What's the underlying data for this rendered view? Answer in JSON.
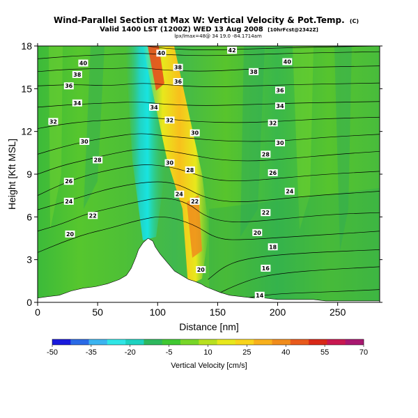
{
  "chart_data": {
    "type": "heatmap",
    "title": "Wind-Parallel Section at Max W: Vertical Velocity & Pot.Temp.",
    "title_mark": "(C)",
    "subtitle": "Valid 1400 LST (1200Z) WED 13 Aug 2008",
    "subtitle_suffix": "[10hrFcst@2342Z]",
    "info_line": "lpx/lmax=48@ 34 19.0 -84.1714am",
    "xlabel": "Distance [nm]",
    "ylabel": "Height [Kft MSL]",
    "xlim": [
      0,
      285
    ],
    "ylim": [
      0,
      18
    ],
    "x_ticks": [
      0,
      50,
      100,
      150,
      200,
      250
    ],
    "y_ticks": [
      0,
      3,
      6,
      9,
      12,
      15,
      18
    ],
    "colorbar": {
      "label": "Vertical Velocity [cm/s]",
      "ticks": [
        -50,
        -35,
        -20,
        -5,
        10,
        25,
        40,
        55,
        70
      ],
      "colors": [
        "#1a1adc",
        "#2a6ae6",
        "#3cb4f0",
        "#30e6e6",
        "#1ed2c0",
        "#2eb85e",
        "#40c832",
        "#78d628",
        "#b8e020",
        "#e8e81c",
        "#f8d41c",
        "#f8b01c",
        "#f08c1c",
        "#e85a1c",
        "#d82818",
        "#c81850",
        "#a81870"
      ]
    },
    "terrain": [
      [
        0,
        0.3
      ],
      [
        8,
        0.4
      ],
      [
        18,
        0.5
      ],
      [
        28,
        0.8
      ],
      [
        38,
        1
      ],
      [
        48,
        1.1
      ],
      [
        58,
        1.3
      ],
      [
        68,
        1.6
      ],
      [
        74,
        1.9
      ],
      [
        78,
        2.4
      ],
      [
        80,
        2.8
      ],
      [
        82,
        3.2
      ],
      [
        84,
        3.7
      ],
      [
        88,
        4.2
      ],
      [
        92,
        4.5
      ],
      [
        96,
        4.3
      ],
      [
        98,
        3.9
      ],
      [
        102,
        3.4
      ],
      [
        106,
        3.0
      ],
      [
        110,
        2.6
      ],
      [
        114,
        2.2
      ],
      [
        118,
        2
      ],
      [
        122,
        1.8
      ],
      [
        126,
        1.6
      ],
      [
        130,
        1.5
      ],
      [
        136,
        1.3
      ],
      [
        140,
        1.1
      ],
      [
        146,
        0.9
      ],
      [
        152,
        0.7
      ],
      [
        160,
        0.5
      ],
      [
        170,
        0.4
      ],
      [
        180,
        0.3
      ],
      [
        190,
        0.3
      ],
      [
        200,
        0.2
      ],
      [
        210,
        0.2
      ],
      [
        220,
        0.2
      ],
      [
        230,
        0.2
      ],
      [
        240,
        0.1
      ],
      [
        250,
        0.1
      ],
      [
        260,
        0.1
      ],
      [
        270,
        0.1
      ],
      [
        285,
        0.1
      ]
    ],
    "theta_contours": [
      {
        "value": 14,
        "points": [
          [
            168,
            0.2
          ],
          [
            180,
            0.4
          ],
          [
            200,
            0.6
          ],
          [
            230,
            0.7
          ],
          [
            260,
            0.8
          ],
          [
            285,
            0.9
          ]
        ]
      },
      {
        "value": 16,
        "points": [
          [
            150,
            0.6
          ],
          [
            165,
            1.2
          ],
          [
            185,
            1.8
          ],
          [
            210,
            2.1
          ],
          [
            240,
            2.3
          ],
          [
            285,
            2.5
          ]
        ]
      },
      {
        "value": 18,
        "points": [
          [
            142,
            1.6
          ],
          [
            155,
            2.5
          ],
          [
            170,
            3
          ],
          [
            195,
            3.3
          ],
          [
            230,
            3.5
          ],
          [
            285,
            3.7
          ]
        ]
      },
      {
        "value": 20,
        "points": [
          [
            0,
            3.5
          ],
          [
            20,
            4.2
          ],
          [
            40,
            4.8
          ],
          [
            60,
            5.2
          ],
          [
            85,
            5.8
          ],
          [
            105,
            6.1
          ],
          [
            130,
            5.5
          ],
          [
            150,
            4.4
          ],
          [
            175,
            4.4
          ],
          [
            210,
            4.6
          ],
          [
            250,
            4.8
          ],
          [
            285,
            5
          ]
        ]
      },
      {
        "value": 22,
        "points": [
          [
            0,
            5
          ],
          [
            20,
            5.5
          ],
          [
            40,
            6.2
          ],
          [
            60,
            6.6
          ],
          [
            85,
            7.1
          ],
          [
            105,
            7.4
          ],
          [
            125,
            7
          ],
          [
            140,
            6
          ],
          [
            160,
            5.6
          ],
          [
            185,
            5.7
          ],
          [
            220,
            6
          ],
          [
            250,
            6.2
          ],
          [
            285,
            6.3
          ]
        ]
      },
      {
        "value": 24,
        "points": [
          [
            0,
            6.5
          ],
          [
            20,
            7
          ],
          [
            40,
            7.5
          ],
          [
            60,
            8
          ],
          [
            85,
            8.4
          ],
          [
            105,
            8.5
          ],
          [
            120,
            8.2
          ],
          [
            140,
            7.3
          ],
          [
            165,
            7
          ],
          [
            195,
            7.2
          ],
          [
            230,
            7.5
          ],
          [
            285,
            7.8
          ]
        ]
      },
      {
        "value": 26,
        "points": [
          [
            0,
            7.5
          ],
          [
            20,
            8.3
          ],
          [
            40,
            8.9
          ],
          [
            60,
            9.3
          ],
          [
            85,
            9.7
          ],
          [
            105,
            9.6
          ],
          [
            125,
            9.2
          ],
          [
            145,
            8.6
          ],
          [
            170,
            8.5
          ],
          [
            200,
            8.7
          ],
          [
            240,
            9
          ],
          [
            285,
            9.2
          ]
        ]
      },
      {
        "value": 28,
        "points": [
          [
            0,
            9
          ],
          [
            20,
            9.6
          ],
          [
            40,
            10
          ],
          [
            60,
            10.4
          ],
          [
            85,
            10.8
          ],
          [
            105,
            10.7
          ],
          [
            125,
            10.4
          ],
          [
            150,
            10
          ],
          [
            180,
            9.9
          ],
          [
            210,
            10.1
          ],
          [
            250,
            10.4
          ],
          [
            285,
            10.6
          ]
        ]
      },
      {
        "value": 30,
        "points": [
          [
            0,
            10.4
          ],
          [
            20,
            10.9
          ],
          [
            40,
            11.3
          ],
          [
            60,
            11.6
          ],
          [
            85,
            11.9
          ],
          [
            105,
            11.7
          ],
          [
            130,
            11.5
          ],
          [
            160,
            11.3
          ],
          [
            200,
            11.3
          ],
          [
            240,
            11.6
          ],
          [
            285,
            11.8
          ]
        ]
      },
      {
        "value": 32,
        "points": [
          [
            0,
            12.2
          ],
          [
            20,
            12.5
          ],
          [
            40,
            12.7
          ],
          [
            60,
            12.8
          ],
          [
            85,
            13
          ],
          [
            105,
            12.9
          ],
          [
            130,
            12.7
          ],
          [
            165,
            12.6
          ],
          [
            200,
            12.7
          ],
          [
            240,
            12.9
          ],
          [
            285,
            13
          ]
        ]
      },
      {
        "value": 34,
        "points": [
          [
            0,
            13.7
          ],
          [
            30,
            13.9
          ],
          [
            60,
            14
          ],
          [
            85,
            14.1
          ],
          [
            105,
            13.9
          ],
          [
            140,
            13.8
          ],
          [
            180,
            13.9
          ],
          [
            220,
            14
          ],
          [
            285,
            14.1
          ]
        ]
      },
      {
        "value": 36,
        "points": [
          [
            0,
            15.2
          ],
          [
            30,
            15.3
          ],
          [
            60,
            15.2
          ],
          [
            85,
            15.4
          ],
          [
            105,
            15.3
          ],
          [
            140,
            15.1
          ],
          [
            180,
            15.2
          ],
          [
            220,
            15.3
          ],
          [
            285,
            15.4
          ]
        ]
      },
      {
        "value": 38,
        "points": [
          [
            0,
            16.2
          ],
          [
            30,
            16.4
          ],
          [
            60,
            16.4
          ],
          [
            85,
            16.5
          ],
          [
            105,
            16.3
          ],
          [
            140,
            16.2
          ],
          [
            180,
            16.4
          ],
          [
            220,
            16.5
          ],
          [
            285,
            16.6
          ]
        ]
      },
      {
        "value": 40,
        "points": [
          [
            0,
            17.1
          ],
          [
            30,
            17.3
          ],
          [
            60,
            17.4
          ],
          [
            85,
            17.5
          ],
          [
            105,
            17.4
          ],
          [
            140,
            17.3
          ],
          [
            180,
            17.4
          ],
          [
            220,
            17.5
          ],
          [
            285,
            17.6
          ]
        ]
      },
      {
        "value": 42,
        "points": [
          [
            90,
            18
          ],
          [
            110,
            17.8
          ],
          [
            140,
            17.7
          ],
          [
            180,
            17.8
          ],
          [
            220,
            17.9
          ],
          [
            285,
            18
          ]
        ]
      }
    ],
    "contour_labels": [
      {
        "text": "40",
        "x": 38,
        "y": 16.8
      },
      {
        "text": "38",
        "x": 33,
        "y": 16.0
      },
      {
        "text": "36",
        "x": 26,
        "y": 15.2
      },
      {
        "text": "34",
        "x": 33,
        "y": 14.0
      },
      {
        "text": "32",
        "x": 13,
        "y": 12.7
      },
      {
        "text": "30",
        "x": 39,
        "y": 11.3
      },
      {
        "text": "28",
        "x": 50,
        "y": 10.0
      },
      {
        "text": "26",
        "x": 26,
        "y": 8.5
      },
      {
        "text": "24",
        "x": 26,
        "y": 7.1
      },
      {
        "text": "22",
        "x": 46,
        "y": 6.1
      },
      {
        "text": "20",
        "x": 27,
        "y": 4.8
      },
      {
        "text": "40",
        "x": 103,
        "y": 17.5
      },
      {
        "text": "38",
        "x": 117,
        "y": 16.5
      },
      {
        "text": "36",
        "x": 117,
        "y": 15.5
      },
      {
        "text": "34",
        "x": 97,
        "y": 13.7
      },
      {
        "text": "32",
        "x": 110,
        "y": 12.8
      },
      {
        "text": "30",
        "x": 131,
        "y": 11.9
      },
      {
        "text": "30",
        "x": 110,
        "y": 9.8
      },
      {
        "text": "28",
        "x": 127,
        "y": 9.3
      },
      {
        "text": "24",
        "x": 118,
        "y": 7.6
      },
      {
        "text": "22",
        "x": 131,
        "y": 7.1
      },
      {
        "text": "20",
        "x": 136,
        "y": 2.3
      },
      {
        "text": "42",
        "x": 162,
        "y": 17.7
      },
      {
        "text": "40",
        "x": 208,
        "y": 16.9
      },
      {
        "text": "38",
        "x": 180,
        "y": 16.2
      },
      {
        "text": "36",
        "x": 202,
        "y": 14.9
      },
      {
        "text": "34",
        "x": 202,
        "y": 13.8
      },
      {
        "text": "32",
        "x": 196,
        "y": 12.6
      },
      {
        "text": "30",
        "x": 202,
        "y": 11.2
      },
      {
        "text": "28",
        "x": 190,
        "y": 10.4
      },
      {
        "text": "26",
        "x": 196,
        "y": 9.1
      },
      {
        "text": "24",
        "x": 210,
        "y": 7.8
      },
      {
        "text": "22",
        "x": 190,
        "y": 6.3
      },
      {
        "text": "20",
        "x": 183,
        "y": 4.9
      },
      {
        "text": "18",
        "x": 196,
        "y": 3.9
      },
      {
        "text": "16",
        "x": 190,
        "y": 2.4
      },
      {
        "text": "14",
        "x": 185,
        "y": 0.5
      }
    ]
  }
}
